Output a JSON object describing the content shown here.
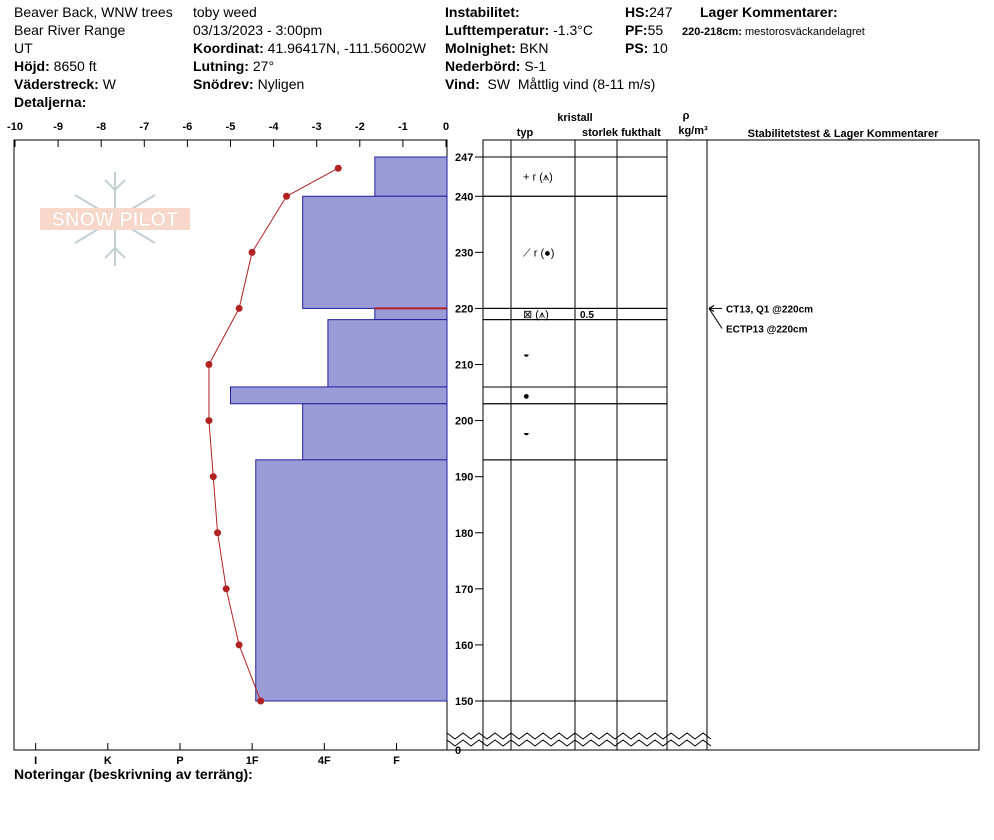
{
  "header": {
    "col1": [
      "Beaver Back, WNW trees",
      "Bear River Range",
      "UT"
    ],
    "elevation": {
      "label": "Höjd:",
      "value": "8650 ft"
    },
    "aspect": {
      "label": "Väderstreck:",
      "value": "W"
    },
    "details": "Detaljerna:",
    "observer": "toby weed",
    "datetime": "03/13/2023 - 3:00pm",
    "coordinates": {
      "label": "Koordinat:",
      "value": "41.96417N, -111.56002W"
    },
    "slope": {
      "label": "Lutning:",
      "value": "27°"
    },
    "wind_loading": {
      "label": "Snödrev:",
      "value": "Nyligen"
    },
    "instability": "Instabilitet:",
    "air_temp": {
      "label": "Lufttemperatur:",
      "value": "-1.3°C"
    },
    "sky": {
      "label": "Molnighet:",
      "value": "BKN"
    },
    "precip": {
      "label": "Nederbörd:",
      "value": "S-1"
    },
    "wind": {
      "label": "Vind:",
      "value": "SW  Måttlig vind (8-11 m/s)"
    },
    "hs": {
      "label": "HS:",
      "value": "247"
    },
    "pf": {
      "label": "PF:",
      "value": "55"
    },
    "ps": {
      "label": "PS:",
      "value": "10"
    },
    "layer_comments_title": "Lager Kommentarer:",
    "layer_comment": {
      "label": "220-218cm:",
      "value": "mestorosväckandelagret"
    }
  },
  "logo": "SNOW PILOT",
  "notes": "Noteringar (beskrivning av terräng):",
  "chart_data": {
    "type": "snow-profile",
    "ylim": [
      150,
      247
    ],
    "yticks": [
      247,
      240,
      230,
      220,
      210,
      200,
      190,
      180,
      170,
      160,
      150
    ],
    "ground_tick": 0,
    "temperature": {
      "color": "#b22222",
      "xlim": [
        -10,
        0
      ],
      "xticks": [
        -10,
        -9,
        -8,
        -7,
        -6,
        -5,
        -4,
        -3,
        -2,
        -1,
        0
      ],
      "heights": [
        245,
        240,
        230,
        220,
        210,
        200,
        190,
        180,
        170,
        160,
        150
      ],
      "values": [
        -2.5,
        -3.7,
        -4.5,
        -4.8,
        -5.5,
        -5.5,
        -5.4,
        -5.3,
        -5.1,
        -4.8,
        -4.3
      ]
    },
    "hardness": {
      "color": "#9b9bd8",
      "edge_color": "#2020a0",
      "xlim": [
        6.3,
        0.3
      ],
      "xticks": [
        {
          "value": 6,
          "label": "I"
        },
        {
          "value": 5,
          "label": "K"
        },
        {
          "value": 4,
          "label": "P"
        },
        {
          "value": 3,
          "label": "1F"
        },
        {
          "value": 2,
          "label": "4F"
        },
        {
          "value": 1,
          "label": "F"
        }
      ]
    },
    "layers": [
      {
        "top": 247,
        "bottom": 240,
        "hardness": 1.3,
        "grain": "+ r (⩚)"
      },
      {
        "top": 240,
        "bottom": 220,
        "hardness": 2.3,
        "grain": "⟋ r (●)"
      },
      {
        "top": 220,
        "bottom": 218,
        "hardness": 1.3,
        "grain": "⊠ (⩚)",
        "size": "0.5",
        "edge_color": "#b22222"
      },
      {
        "top": 218,
        "bottom": 206,
        "hardness": 1.95,
        "grain": "◒"
      },
      {
        "top": 206,
        "bottom": 203,
        "hardness": 3.3,
        "grain": "●"
      },
      {
        "top": 203,
        "bottom": 193,
        "hardness": 2.3,
        "grain": "◒"
      },
      {
        "top": 193,
        "bottom": 150,
        "hardness": 2.95
      }
    ],
    "table_headers": {
      "crystal": "kristall",
      "type": "typ",
      "size": "storlek",
      "moisture": "fukthalt",
      "rho": "ρ",
      "density_unit": "kg/m³",
      "stability": "Stabilitetstest & Lager Kommentarer"
    },
    "tests": [
      {
        "text": "CT13, Q1 @220cm",
        "height": 220
      },
      {
        "text": "ECTP13 @220cm",
        "height": 220
      }
    ]
  }
}
